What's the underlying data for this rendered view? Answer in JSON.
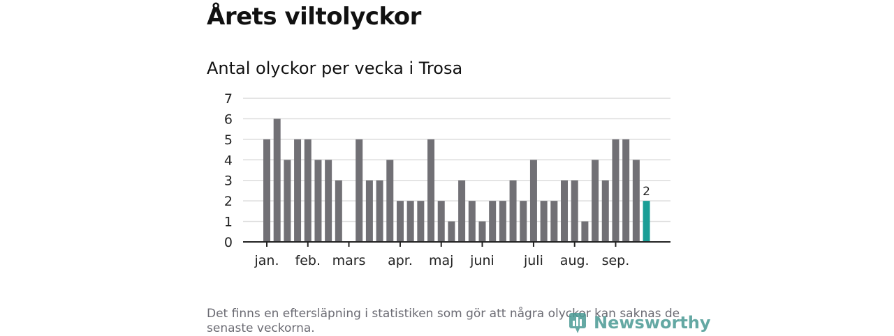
{
  "header": {
    "title": "Årets viltolyckor"
  },
  "chart_data": {
    "type": "bar",
    "title": "Antal olyckor per vecka i Trosa",
    "xlabel": "",
    "ylabel": "",
    "ylim": [
      0,
      7
    ],
    "yticks": [
      "0",
      "1",
      "2",
      "3",
      "4",
      "5",
      "6",
      "7"
    ],
    "grid": true,
    "values": [
      5,
      6,
      4,
      5,
      5,
      4,
      4,
      3,
      0,
      5,
      3,
      3,
      4,
      2,
      2,
      2,
      5,
      2,
      1,
      3,
      2,
      1,
      2,
      2,
      3,
      2,
      4,
      2,
      2,
      3,
      3,
      1,
      4,
      3,
      5,
      5,
      4,
      2
    ],
    "highlight_index": 37,
    "highlight_label": "2",
    "month_labels": [
      {
        "label": "jan.",
        "week": 1
      },
      {
        "label": "feb.",
        "week": 5
      },
      {
        "label": "mars",
        "week": 9
      },
      {
        "label": "apr.",
        "week": 14
      },
      {
        "label": "maj",
        "week": 18
      },
      {
        "label": "juni",
        "week": 22
      },
      {
        "label": "juli",
        "week": 27
      },
      {
        "label": "aug.",
        "week": 31
      },
      {
        "label": "sep.",
        "week": 35
      }
    ],
    "colors": {
      "bar": "#717075",
      "highlight": "#1a9e96",
      "grid": "#dcdcdc",
      "axis": "#222222"
    }
  },
  "footer": {
    "note": "Det finns en eftersläpning i statistiken som gör att några olyckor kan saknas de senaste veckorna.",
    "logo_text": "Newsworthy"
  }
}
